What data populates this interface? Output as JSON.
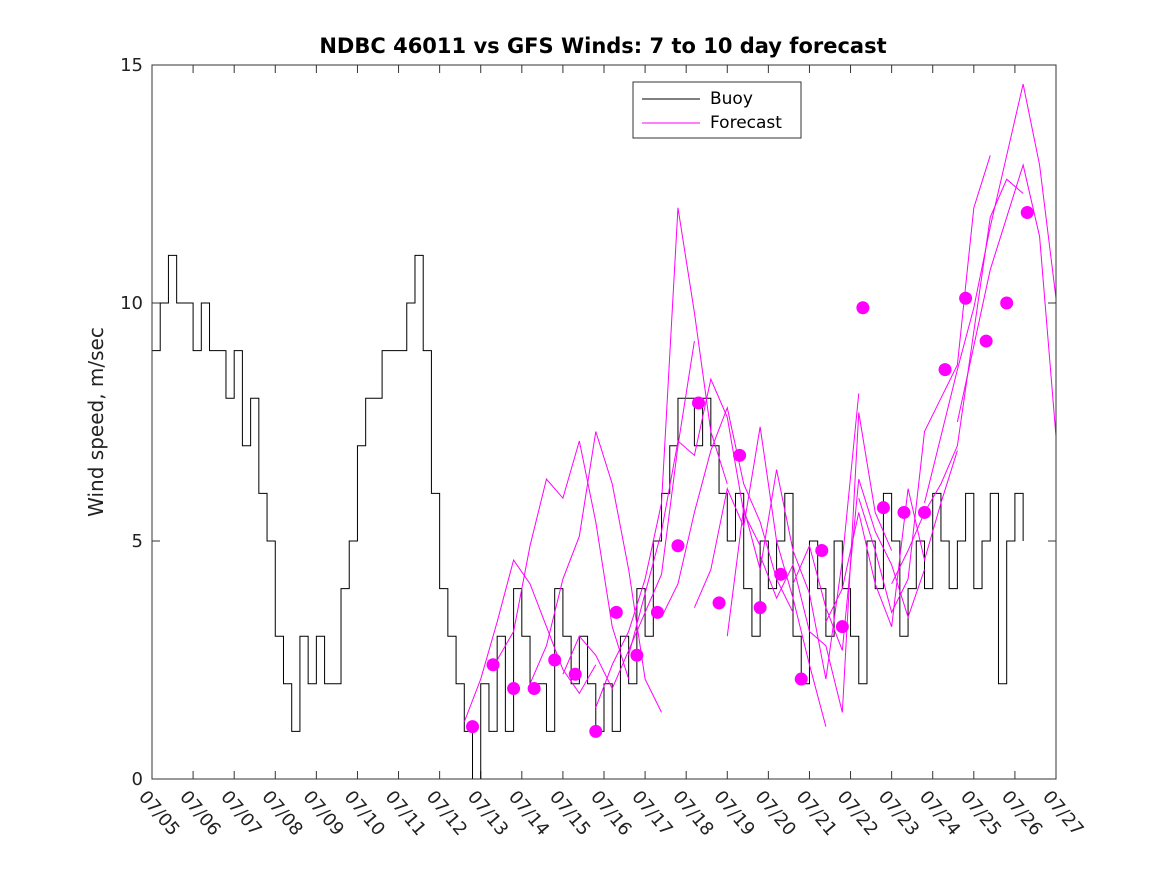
{
  "chart_data": {
    "type": "line",
    "title": "NDBC 46011 vs GFS Winds: 7 to 10 day forecast",
    "xlabel": "",
    "ylabel": "Wind speed, m/sec",
    "x_ticks": [
      "07/05",
      "07/06",
      "07/07",
      "07/08",
      "07/09",
      "07/10",
      "07/11",
      "07/12",
      "07/13",
      "07/14",
      "07/15",
      "07/16",
      "07/17",
      "07/18",
      "07/19",
      "07/20",
      "07/21",
      "07/22",
      "07/23",
      "07/24",
      "07/25",
      "07/26",
      "07/27"
    ],
    "xlim": [
      0,
      22
    ],
    "ylim": [
      0,
      15
    ],
    "y_ticks": [
      0,
      5,
      10,
      15
    ],
    "grid": false,
    "legend_position": "top-center",
    "colors": {
      "buoy": "#000000",
      "forecast": "#ff00ff"
    },
    "series": [
      {
        "name": "Buoy",
        "style": "line",
        "x": [
          0.0,
          0.2,
          0.4,
          0.6,
          0.8,
          1.0,
          1.2,
          1.4,
          1.6,
          1.8,
          2.0,
          2.2,
          2.4,
          2.6,
          2.8,
          3.0,
          3.2,
          3.4,
          3.6,
          3.8,
          4.0,
          4.2,
          4.4,
          4.6,
          4.8,
          5.0,
          5.2,
          5.4,
          5.6,
          5.8,
          6.0,
          6.2,
          6.4,
          6.6,
          6.8,
          7.0,
          7.2,
          7.4,
          7.6,
          7.8,
          8.0,
          8.2,
          8.4,
          8.6,
          8.8,
          9.0,
          9.2,
          9.4,
          9.6,
          9.8,
          10.0,
          10.2,
          10.4,
          10.6,
          10.8,
          11.0,
          11.2,
          11.4,
          11.6,
          11.8,
          12.0,
          12.2,
          12.4,
          12.6,
          12.8,
          13.0,
          13.2,
          13.4,
          13.6,
          13.8,
          14.0,
          14.2,
          14.4,
          14.6,
          14.8,
          15.0,
          15.2,
          15.4,
          15.6,
          15.8,
          16.0,
          16.2,
          16.4,
          16.6,
          16.8,
          17.0,
          17.2,
          17.4,
          17.6,
          17.8,
          18.0,
          18.2,
          18.4,
          18.6,
          18.8,
          19.0,
          19.2,
          19.4,
          19.6,
          19.8,
          20.0,
          20.2,
          20.4,
          20.6,
          20.8,
          21.0,
          21.2
        ],
        "values": [
          9,
          10,
          11,
          10,
          10,
          9,
          10,
          9,
          9,
          8,
          9,
          7,
          8,
          6,
          5,
          3,
          2,
          1,
          3,
          2,
          3,
          2,
          2,
          4,
          5,
          7,
          8,
          8,
          9,
          9,
          9,
          10,
          11,
          9,
          6,
          4,
          3,
          2,
          1,
          0,
          2,
          1,
          3,
          1,
          4,
          3,
          2,
          2,
          1,
          4,
          3,
          2,
          3,
          2,
          1,
          2,
          1,
          3,
          2,
          4,
          3,
          5,
          6,
          7,
          8,
          8,
          7,
          8,
          7,
          6,
          5,
          6,
          4,
          3,
          5,
          4,
          5,
          6,
          3,
          2,
          5,
          4,
          3,
          5,
          4,
          3,
          2,
          5,
          4,
          6,
          5,
          3,
          4,
          5,
          4,
          6,
          5,
          4,
          5,
          6,
          4,
          5,
          6,
          2,
          5,
          6,
          5
        ]
      },
      {
        "name": "Forecast",
        "style": "line",
        "runs": [
          {
            "x": [
              7.6,
              8.0,
              8.4,
              8.8,
              9.2,
              9.6,
              10.0,
              10.4,
              10.8
            ],
            "values": [
              1.2,
              2.1,
              3.3,
              4.6,
              4.1,
              3.2,
              2.3,
              1.8,
              2.4
            ]
          },
          {
            "x": [
              8.4,
              8.8,
              9.2,
              9.6,
              10.0,
              10.4,
              10.8,
              11.2,
              11.6
            ],
            "values": [
              2.5,
              3.1,
              4.9,
              6.3,
              5.9,
              7.1,
              5.4,
              3.2,
              2.1
            ]
          },
          {
            "x": [
              9.2,
              9.6,
              10.0,
              10.4,
              10.8,
              11.2,
              11.6,
              12.0,
              12.4
            ],
            "values": [
              2.0,
              2.8,
              4.2,
              5.1,
              7.3,
              6.2,
              4.4,
              2.1,
              1.4
            ]
          },
          {
            "x": [
              10.0,
              10.4,
              10.8,
              11.2,
              11.6,
              12.0,
              12.4,
              12.8,
              13.2
            ],
            "values": [
              2.2,
              3.0,
              2.6,
              1.9,
              2.7,
              3.5,
              4.3,
              7.0,
              9.2
            ]
          },
          {
            "x": [
              10.8,
              11.2,
              11.6,
              12.0,
              12.4,
              12.8,
              13.2,
              13.6,
              14.0
            ],
            "values": [
              1.5,
              2.4,
              3.1,
              4.2,
              5.8,
              12.0,
              9.8,
              7.3,
              6.2
            ]
          },
          {
            "x": [
              11.6,
              12.0,
              12.4,
              12.8,
              13.2,
              13.6,
              14.0,
              14.4,
              14.8
            ],
            "values": [
              2.6,
              3.9,
              5.2,
              7.1,
              6.8,
              8.4,
              7.6,
              5.6,
              4.9
            ]
          },
          {
            "x": [
              12.4,
              12.8,
              13.2,
              13.6,
              14.0,
              14.4,
              14.8,
              15.2,
              15.6
            ],
            "values": [
              3.4,
              4.1,
              5.6,
              6.9,
              7.8,
              6.2,
              5.4,
              4.2,
              3.5
            ]
          },
          {
            "x": [
              13.2,
              13.6,
              14.0,
              14.4,
              14.8,
              15.2,
              15.6,
              16.0,
              16.4
            ],
            "values": [
              3.6,
              4.4,
              6.1,
              5.3,
              7.4,
              5.0,
              3.8,
              2.4,
              1.1
            ]
          },
          {
            "x": [
              14.0,
              14.4,
              14.8,
              15.2,
              15.6,
              16.0,
              16.4,
              16.8,
              17.2
            ],
            "values": [
              3.0,
              5.7,
              4.4,
              6.5,
              4.8,
              3.9,
              2.1,
              4.6,
              8.1
            ]
          },
          {
            "x": [
              14.8,
              15.2,
              15.6,
              16.0,
              16.4,
              16.8,
              17.2,
              17.6,
              18.0
            ],
            "values": [
              4.7,
              3.8,
              4.5,
              3.1,
              2.8,
              1.4,
              7.7,
              5.6,
              4.8
            ]
          },
          {
            "x": [
              15.6,
              16.0,
              16.4,
              16.8,
              17.2,
              17.6,
              18.0,
              18.4,
              18.8
            ],
            "values": [
              4.1,
              4.9,
              3.6,
              2.7,
              6.3,
              5.2,
              4.5,
              3.4,
              4.4
            ]
          },
          {
            "x": [
              16.4,
              16.8,
              17.2,
              17.6,
              18.0,
              18.4,
              18.8,
              19.2,
              19.6
            ],
            "values": [
              3.3,
              4.0,
              5.6,
              4.1,
              3.2,
              6.1,
              4.6,
              5.8,
              6.9
            ]
          },
          {
            "x": [
              17.2,
              17.6,
              18.0,
              18.4,
              18.8,
              19.2,
              19.6,
              20.0,
              20.4
            ],
            "values": [
              5.9,
              4.8,
              3.5,
              4.2,
              7.3,
              8.0,
              8.7,
              12.0,
              13.1
            ]
          },
          {
            "x": [
              18.0,
              18.4,
              18.8,
              19.2,
              19.6,
              20.0,
              20.4,
              20.8,
              21.2
            ],
            "values": [
              4.1,
              4.8,
              5.6,
              6.2,
              7.0,
              9.4,
              11.8,
              12.6,
              12.3
            ]
          },
          {
            "x": [
              18.8,
              19.2,
              19.6,
              20.0,
              20.4,
              20.8,
              21.2,
              21.6,
              22.0
            ],
            "values": [
              5.8,
              7.2,
              8.6,
              9.9,
              11.6,
              13.1,
              14.6,
              12.9,
              10.1
            ]
          },
          {
            "x": [
              19.6,
              20.0,
              20.4,
              20.8,
              21.2,
              21.6,
              22.0
            ],
            "values": [
              7.5,
              9.1,
              10.7,
              11.8,
              12.9,
              11.4,
              7.2
            ]
          }
        ]
      },
      {
        "name": "",
        "style": "marker",
        "x": [
          7.8,
          8.3,
          8.8,
          9.3,
          9.8,
          10.3,
          10.8,
          11.3,
          11.8,
          12.3,
          12.8,
          13.3,
          13.8,
          14.3,
          14.8,
          15.3,
          15.8,
          16.3,
          16.8,
          17.3,
          17.8,
          18.3,
          18.8,
          19.3,
          19.8,
          20.3,
          20.8,
          21.3
        ],
        "values": [
          1.1,
          2.4,
          1.9,
          1.9,
          2.5,
          2.2,
          1.0,
          3.5,
          2.6,
          3.5,
          4.9,
          7.9,
          3.7,
          6.8,
          3.6,
          4.3,
          2.1,
          4.8,
          3.2,
          9.9,
          5.7,
          5.6,
          5.6,
          8.6,
          10.1,
          9.2,
          10.0,
          11.9
        ]
      }
    ]
  }
}
